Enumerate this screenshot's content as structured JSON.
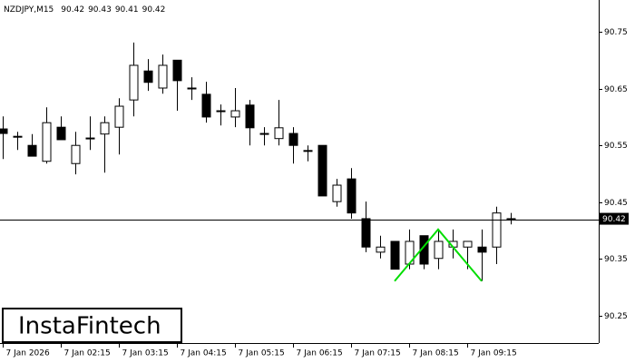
{
  "chart_data": {
    "type": "candlestick",
    "title": "NZDJPY,M15",
    "header_ohlc": [
      90.42,
      90.43,
      90.41,
      90.42
    ],
    "open": [
      90.579,
      90.566,
      90.55,
      90.522,
      90.582,
      90.518,
      90.562,
      90.57,
      90.582,
      90.63,
      90.681,
      90.651,
      90.7,
      90.651,
      90.64,
      90.611,
      90.6,
      90.621,
      90.571,
      90.562,
      90.571,
      90.541,
      90.55,
      90.451,
      90.491,
      90.421,
      90.362,
      90.381,
      90.341,
      90.391,
      90.351,
      90.371,
      90.371,
      90.371,
      90.371,
      90.421
    ],
    "high": [
      90.601,
      90.574,
      90.57,
      90.617,
      90.601,
      90.574,
      90.601,
      90.601,
      90.633,
      90.731,
      90.702,
      90.71,
      90.7,
      90.67,
      90.662,
      90.622,
      90.651,
      90.63,
      90.582,
      90.63,
      90.582,
      90.55,
      90.55,
      90.491,
      90.51,
      90.451,
      90.391,
      90.381,
      90.402,
      90.391,
      90.402,
      90.402,
      90.381,
      90.402,
      90.442,
      90.431
    ],
    "low": [
      90.526,
      90.542,
      90.531,
      90.518,
      90.56,
      90.499,
      90.542,
      90.502,
      90.534,
      90.601,
      90.646,
      90.641,
      90.611,
      90.63,
      90.59,
      90.585,
      90.582,
      90.55,
      90.55,
      90.55,
      90.518,
      90.522,
      90.461,
      90.442,
      90.421,
      90.362,
      90.351,
      90.332,
      90.332,
      90.332,
      90.332,
      90.351,
      90.332,
      90.311,
      90.341,
      90.411
    ],
    "close": [
      90.571,
      90.565,
      90.531,
      90.59,
      90.56,
      90.55,
      90.563,
      90.59,
      90.619,
      90.691,
      90.661,
      90.691,
      90.664,
      90.65,
      90.6,
      90.611,
      90.611,
      90.581,
      90.571,
      90.581,
      90.55,
      90.541,
      90.461,
      90.48,
      90.431,
      90.371,
      90.371,
      90.332,
      90.381,
      90.341,
      90.381,
      90.381,
      90.381,
      90.362,
      90.431,
      90.42
    ],
    "up_color": "#ffffff",
    "down_color": "#000000",
    "ylim": [
      90.202,
      90.806
    ],
    "yticks": [
      90.75,
      90.65,
      90.55,
      90.45,
      90.35,
      90.25
    ],
    "xticks": [
      {
        "value": 0,
        "label": "7 Jan 2026"
      },
      {
        "value": 4,
        "label": "7 Jan 02:15"
      },
      {
        "value": 8,
        "label": "7 Jan 03:15"
      },
      {
        "value": 12,
        "label": "7 Jan 04:15"
      },
      {
        "value": 16,
        "label": "7 Jan 05:15"
      },
      {
        "value": 20,
        "label": "7 Jan 06:15"
      },
      {
        "value": 24,
        "label": "7 Jan 07:15"
      },
      {
        "value": 28,
        "label": "7 Jan 08:15"
      },
      {
        "value": 32,
        "label": "7 Jan 09:15"
      }
    ],
    "last_price": 90.42,
    "pattern": {
      "color": "#00dd00",
      "x": [
        27,
        30,
        33
      ],
      "values": [
        90.311,
        90.402,
        90.311
      ]
    },
    "watermark": "InstaFintech"
  }
}
